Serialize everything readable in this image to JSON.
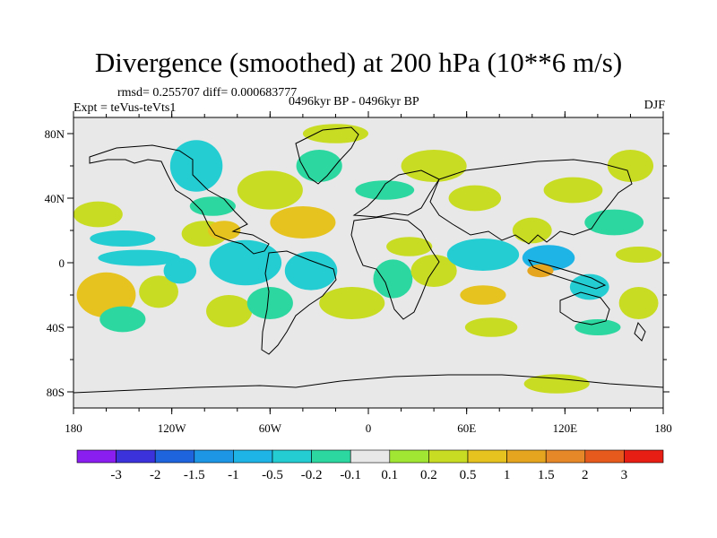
{
  "header": {
    "title": "Divergence (smoothed) at 200 hPa (10**6 m/s)",
    "rmsd_line": "rmsd= 0.255707 diff= 0.000683777",
    "expt_line": "Expt = teVus-teVts1",
    "period": "0496kyr BP - 0496kyr BP",
    "season": "DJF"
  },
  "chart_data": {
    "type": "heatmap",
    "title": "Divergence (smoothed) at 200 hPa (10**6 m/s)",
    "x_ticks": [
      {
        "value": -180,
        "label": "180"
      },
      {
        "value": -120,
        "label": "120W"
      },
      {
        "value": -60,
        "label": "60W"
      },
      {
        "value": 0,
        "label": "0"
      },
      {
        "value": 60,
        "label": "60E"
      },
      {
        "value": 120,
        "label": "120E"
      },
      {
        "value": 180,
        "label": "180"
      }
    ],
    "y_ticks": [
      {
        "value": 80,
        "label": "80N"
      },
      {
        "value": 40,
        "label": "40N"
      },
      {
        "value": 0,
        "label": "0"
      },
      {
        "value": -40,
        "label": "40S"
      },
      {
        "value": -80,
        "label": "80S"
      }
    ],
    "xlim": [
      -180,
      180
    ],
    "ylim": [
      -90,
      90
    ],
    "colorbar": {
      "colors": [
        "#8a1ef0",
        "#3c32dc",
        "#1e64dc",
        "#1e96e6",
        "#1eb4e6",
        "#23cdd2",
        "#2dd7a0",
        "#e8e8e8",
        "#a0e632",
        "#c8dc23",
        "#e6c31e",
        "#e6a51e",
        "#e68728",
        "#e65a1e",
        "#e61e14"
      ],
      "labels": [
        "-3",
        "-2",
        "-1.5",
        "-1",
        "-0.5",
        "-0.2",
        "-0.1",
        "0.1",
        "0.2",
        "0.5",
        "1",
        "1.5",
        "2",
        "3"
      ]
    },
    "field_blobs": [
      {
        "lon": -160,
        "lat": -20,
        "rx": 18,
        "ry": 14,
        "level": 3
      },
      {
        "lon": -165,
        "lat": 30,
        "rx": 15,
        "ry": 8,
        "level": 2
      },
      {
        "lon": -150,
        "lat": 15,
        "rx": 20,
        "ry": 5,
        "level": -2
      },
      {
        "lon": -140,
        "lat": 3,
        "rx": 25,
        "ry": 5,
        "level": -2
      },
      {
        "lon": -150,
        "lat": -35,
        "rx": 14,
        "ry": 8,
        "level": -1
      },
      {
        "lon": -128,
        "lat": -18,
        "rx": 12,
        "ry": 10,
        "level": 2
      },
      {
        "lon": -115,
        "lat": -5,
        "rx": 10,
        "ry": 8,
        "level": -2
      },
      {
        "lon": -105,
        "lat": 60,
        "rx": 16,
        "ry": 16,
        "level": -2
      },
      {
        "lon": -100,
        "lat": 18,
        "rx": 14,
        "ry": 8,
        "level": 2
      },
      {
        "lon": -88,
        "lat": 20,
        "rx": 10,
        "ry": 6,
        "level": 3
      },
      {
        "lon": -95,
        "lat": 35,
        "rx": 14,
        "ry": 6,
        "level": -1
      },
      {
        "lon": -75,
        "lat": 0,
        "rx": 22,
        "ry": 14,
        "level": -2
      },
      {
        "lon": -85,
        "lat": -30,
        "rx": 14,
        "ry": 10,
        "level": 2
      },
      {
        "lon": -60,
        "lat": -25,
        "rx": 14,
        "ry": 10,
        "level": -1
      },
      {
        "lon": -60,
        "lat": 45,
        "rx": 20,
        "ry": 12,
        "level": 2
      },
      {
        "lon": -40,
        "lat": 25,
        "rx": 20,
        "ry": 10,
        "level": 3
      },
      {
        "lon": -35,
        "lat": -5,
        "rx": 16,
        "ry": 12,
        "level": -2
      },
      {
        "lon": -30,
        "lat": 60,
        "rx": 14,
        "ry": 10,
        "level": -1
      },
      {
        "lon": -20,
        "lat": 80,
        "rx": 20,
        "ry": 6,
        "level": 2
      },
      {
        "lon": -10,
        "lat": -25,
        "rx": 20,
        "ry": 10,
        "level": 2
      },
      {
        "lon": 10,
        "lat": 45,
        "rx": 18,
        "ry": 6,
        "level": -1
      },
      {
        "lon": 15,
        "lat": -10,
        "rx": 12,
        "ry": 12,
        "level": -1
      },
      {
        "lon": 25,
        "lat": 10,
        "rx": 14,
        "ry": 6,
        "level": 2
      },
      {
        "lon": 40,
        "lat": 60,
        "rx": 20,
        "ry": 10,
        "level": 2
      },
      {
        "lon": 40,
        "lat": -5,
        "rx": 14,
        "ry": 10,
        "level": 2
      },
      {
        "lon": 65,
        "lat": 40,
        "rx": 16,
        "ry": 8,
        "level": 2
      },
      {
        "lon": 70,
        "lat": 5,
        "rx": 22,
        "ry": 10,
        "level": -2
      },
      {
        "lon": 70,
        "lat": -20,
        "rx": 14,
        "ry": 6,
        "level": 3
      },
      {
        "lon": 75,
        "lat": -40,
        "rx": 16,
        "ry": 6,
        "level": 2
      },
      {
        "lon": 100,
        "lat": 20,
        "rx": 12,
        "ry": 8,
        "level": 2
      },
      {
        "lon": 110,
        "lat": 3,
        "rx": 16,
        "ry": 8,
        "level": -3
      },
      {
        "lon": 105,
        "lat": -5,
        "rx": 8,
        "ry": 4,
        "level": 4
      },
      {
        "lon": 125,
        "lat": 45,
        "rx": 18,
        "ry": 8,
        "level": 2
      },
      {
        "lon": 150,
        "lat": 25,
        "rx": 18,
        "ry": 8,
        "level": -1
      },
      {
        "lon": 135,
        "lat": -15,
        "rx": 12,
        "ry": 8,
        "level": -2
      },
      {
        "lon": 160,
        "lat": 60,
        "rx": 14,
        "ry": 10,
        "level": 2
      },
      {
        "lon": 165,
        "lat": -25,
        "rx": 12,
        "ry": 10,
        "level": 2
      },
      {
        "lon": 140,
        "lat": -40,
        "rx": 14,
        "ry": 5,
        "level": -1
      },
      {
        "lon": 115,
        "lat": -75,
        "rx": 20,
        "ry": 6,
        "level": 2
      },
      {
        "lon": 165,
        "lat": 5,
        "rx": 14,
        "ry": 5,
        "level": 2
      }
    ]
  }
}
